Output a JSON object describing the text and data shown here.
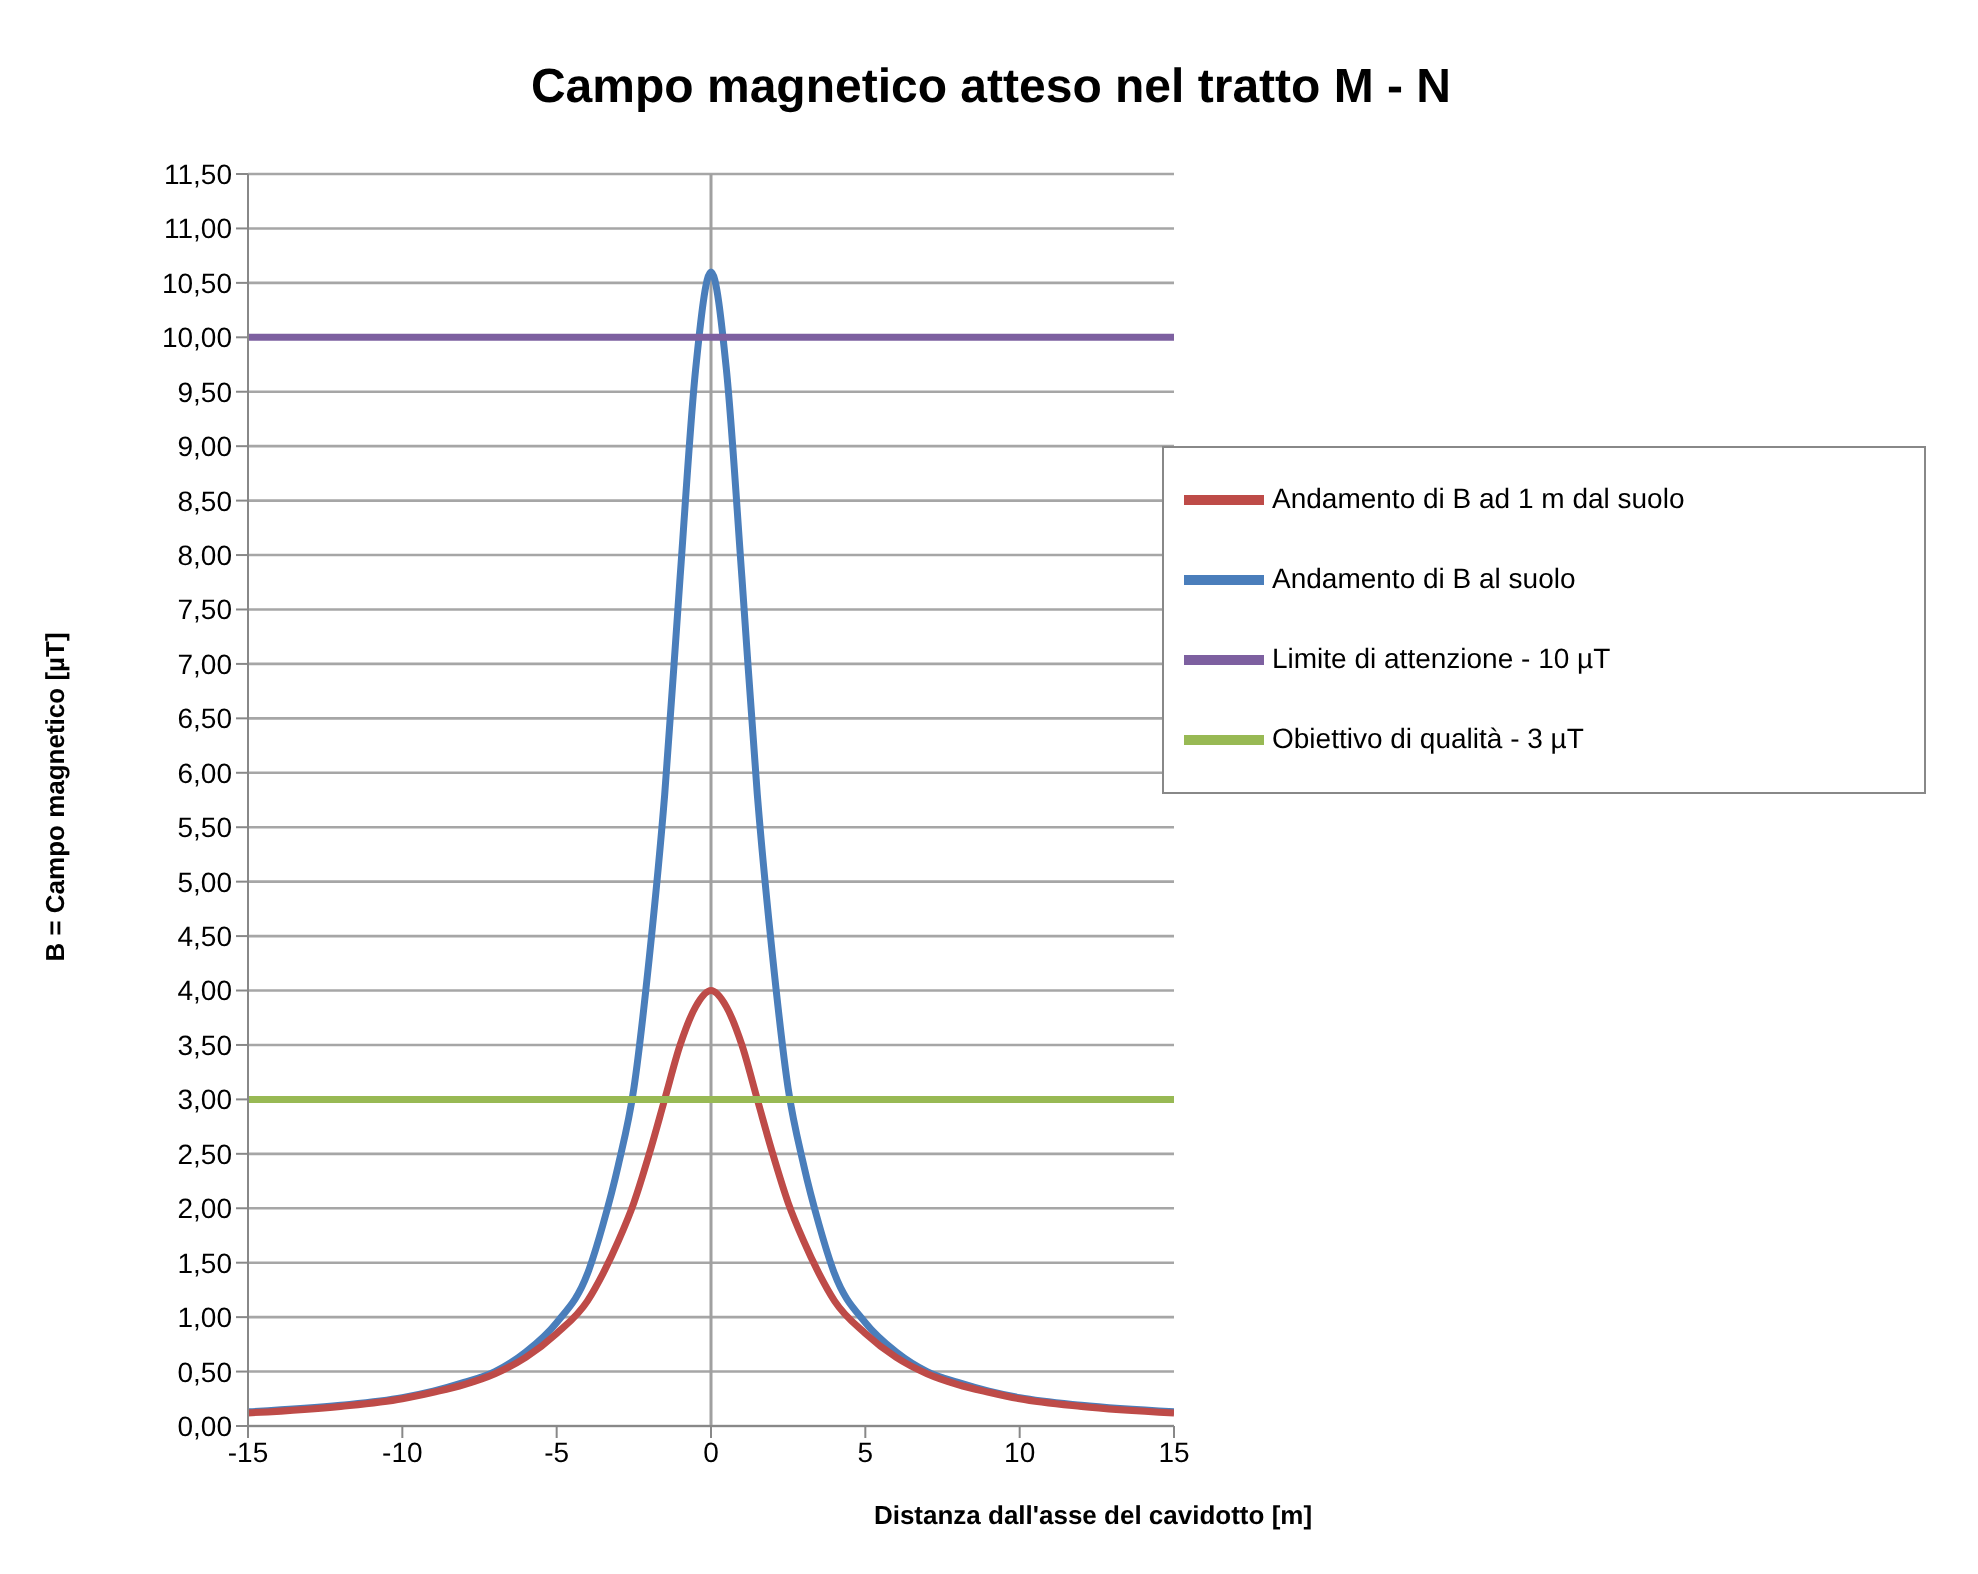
{
  "chart_data": {
    "type": "line",
    "title": "Campo magnetico atteso nel tratto M - N",
    "xlabel": "Distanza dall'asse del cavidotto [m]",
    "ylabel": "B = Campo magnetico [µT]",
    "series": [
      {
        "name": "Andamento di B al suolo",
        "color": "#4a7ebb",
        "x": [
          -15,
          -12,
          -10,
          -9,
          -8,
          -7,
          -6,
          -5,
          -4,
          -3.5,
          -3,
          -2.5,
          -2,
          -1.5,
          -1,
          -0.5,
          0,
          0.5,
          1,
          1.5,
          2,
          2.5,
          3,
          3.5,
          4,
          5,
          6,
          7,
          8,
          9,
          10,
          12,
          15
        ],
        "values": [
          0.13,
          0.19,
          0.26,
          0.32,
          0.4,
          0.5,
          0.68,
          0.95,
          1.4,
          1.85,
          2.4,
          3.1,
          4.3,
          5.8,
          7.8,
          9.7,
          10.6,
          9.7,
          7.8,
          5.8,
          4.3,
          3.1,
          2.4,
          1.85,
          1.4,
          0.95,
          0.68,
          0.5,
          0.4,
          0.32,
          0.26,
          0.19,
          0.13
        ]
      },
      {
        "name": "Andamento di B ad 1 m dal suolo",
        "color": "#be4b48",
        "x": [
          -15,
          -12,
          -10,
          -9,
          -8,
          -7,
          -6,
          -5,
          -4,
          -3.5,
          -3,
          -2.5,
          -2,
          -1.5,
          -1,
          -0.5,
          0,
          0.5,
          1,
          1.5,
          2,
          2.5,
          3,
          3.5,
          4,
          5,
          6,
          7,
          8,
          9,
          10,
          12,
          15
        ],
        "values": [
          0.12,
          0.18,
          0.25,
          0.31,
          0.38,
          0.48,
          0.63,
          0.85,
          1.15,
          1.4,
          1.7,
          2.05,
          2.5,
          3.0,
          3.5,
          3.85,
          4.0,
          3.85,
          3.5,
          3.0,
          2.5,
          2.05,
          1.7,
          1.4,
          1.15,
          0.85,
          0.63,
          0.48,
          0.38,
          0.31,
          0.25,
          0.18,
          0.12
        ]
      },
      {
        "name": "Obiettivo di qualità - 3 µT",
        "color": "#98b954",
        "x": [
          -15,
          15
        ],
        "values": [
          3,
          3
        ]
      },
      {
        "name": "Limite di attenzione - 10 µT",
        "color": "#7d60a0",
        "x": [
          -15,
          15
        ],
        "values": [
          10,
          10
        ]
      }
    ],
    "ref_lines": [
      {
        "axis": "x",
        "value": 0,
        "color": "#a0a0a0"
      }
    ],
    "xlim": [
      -15,
      15
    ],
    "xticks": [
      -15,
      -10,
      -5,
      0,
      5,
      10,
      15
    ],
    "ylim": [
      0,
      11.5
    ],
    "yticks": [
      {
        "value": 0,
        "label": "0,00"
      },
      {
        "value": 0.5,
        "label": "0,50"
      },
      {
        "value": 1,
        "label": "1,00"
      },
      {
        "value": 1.5,
        "label": "1,50"
      },
      {
        "value": 2,
        "label": "2,00"
      },
      {
        "value": 2.5,
        "label": "2,50"
      },
      {
        "value": 3,
        "label": "3,00"
      },
      {
        "value": 3.5,
        "label": "3,50"
      },
      {
        "value": 4,
        "label": "4,00"
      },
      {
        "value": 4.5,
        "label": "4,50"
      },
      {
        "value": 5,
        "label": "5,00"
      },
      {
        "value": 5.5,
        "label": "5,50"
      },
      {
        "value": 6,
        "label": "6,00"
      },
      {
        "value": 6.5,
        "label": "6,50"
      },
      {
        "value": 7,
        "label": "7,00"
      },
      {
        "value": 7.5,
        "label": "7,50"
      },
      {
        "value": 8,
        "label": "8,00"
      },
      {
        "value": 8.5,
        "label": "8,50"
      },
      {
        "value": 9,
        "label": "9,00"
      },
      {
        "value": 9.5,
        "label": "9,50"
      },
      {
        "value": 10,
        "label": "10,00"
      },
      {
        "value": 10.5,
        "label": "10,50"
      },
      {
        "value": 11,
        "label": "11,00"
      },
      {
        "value": 11.5,
        "label": "11,50"
      }
    ],
    "grid": "y",
    "legend": "right",
    "marker": "none",
    "line_style": "solid"
  }
}
